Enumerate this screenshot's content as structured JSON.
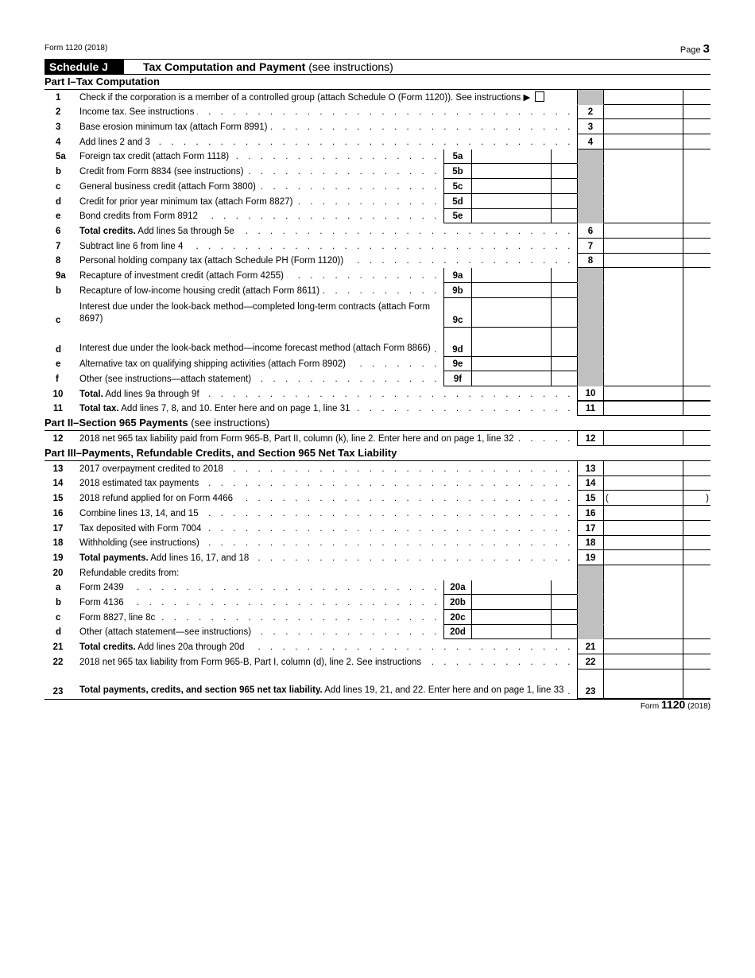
{
  "header": {
    "form_id": "Form 1120 (2018)",
    "page_label": "Page",
    "page_number": "3"
  },
  "schedule": {
    "badge": "Schedule J",
    "title": "Tax Computation and Payment",
    "note": "(see instructions)"
  },
  "rows": [
    {
      "type": "part",
      "title": "Part I–Tax Computation",
      "note": ""
    },
    {
      "type": "check",
      "num": "1",
      "desc": "Check if the corporation is a member of a controlled group (attach Schedule O (Form 1120)). See instructions",
      "arrow": "▶"
    },
    {
      "type": "main",
      "num": "2",
      "desc": "Income tax.  See instructions",
      "ln": "2"
    },
    {
      "type": "main",
      "num": "3",
      "desc": "Base erosion minimum tax (attach Form 8991)",
      "ln": "3"
    },
    {
      "type": "main",
      "num": "4",
      "desc": "Add lines 2 and 3",
      "ln": "4"
    },
    {
      "type": "sub",
      "num": "5a",
      "desc": "Foreign tax credit (attach Form 1118)",
      "sub": "5a"
    },
    {
      "type": "sub",
      "num": "b",
      "desc": "Credit from Form 8834 (see instructions)",
      "sub": "5b"
    },
    {
      "type": "sub",
      "num": "c",
      "desc": "General business credit (attach Form 3800)",
      "sub": "5c"
    },
    {
      "type": "sub",
      "num": "d",
      "desc": "Credit for prior year minimum tax (attach Form 8827)",
      "sub": "5d"
    },
    {
      "type": "sub",
      "num": "e",
      "desc": "Bond credits from Form 8912",
      "sub": "5e",
      "last": true
    },
    {
      "type": "main",
      "num": "6",
      "bold": "Total credits.",
      "desc": " Add lines 5a through 5e",
      "ln": "6"
    },
    {
      "type": "main",
      "num": "7",
      "desc": "Subtract line 6 from line 4",
      "ln": "7"
    },
    {
      "type": "main",
      "num": "8",
      "desc": "Personal holding company tax (attach Schedule PH (Form 1120))",
      "ln": "8"
    },
    {
      "type": "sub",
      "num": "9a",
      "desc": "Recapture of investment credit (attach Form 4255)",
      "sub": "9a"
    },
    {
      "type": "sub",
      "num": "b",
      "desc": "Recapture of low-income housing credit (attach Form 8611)",
      "sub": "9b"
    },
    {
      "type": "sub",
      "tall": true,
      "num": "c",
      "desc": "Interest due under the look-back method—completed long-term contracts (attach Form 8697)",
      "sub": "9c"
    },
    {
      "type": "sub",
      "tall": true,
      "num": "d",
      "desc": "Interest due under the look-back method—income forecast method (attach Form 8866)",
      "sub": "9d"
    },
    {
      "type": "sub",
      "num": "e",
      "desc": "Alternative tax on qualifying shipping activities (attach Form 8902)",
      "sub": "9e"
    },
    {
      "type": "sub",
      "num": "f",
      "desc": "Other (see instructions—attach statement)",
      "sub": "9f",
      "last": true
    },
    {
      "type": "main",
      "num": "10",
      "bold": "Total.",
      "desc": " Add lines 9a through 9f",
      "ln": "10",
      "thick": true
    },
    {
      "type": "main",
      "num": "11",
      "bold": "Total tax.",
      "desc": " Add lines 7, 8, and 10. Enter here and on page 1, line 31",
      "ln": "11"
    },
    {
      "type": "part",
      "title": "Part II–Section 965 Payments",
      "note": "(see instructions)"
    },
    {
      "type": "main",
      "num": "12",
      "desc": "2018 net 965 tax liability paid from Form 965-B, Part II, column (k), line 2. Enter here and on page 1, line 32",
      "ln": "12"
    },
    {
      "type": "part",
      "title": "Part III–Payments, Refundable Credits, and Section 965 Net Tax Liability",
      "note": ""
    },
    {
      "type": "main",
      "num": "13",
      "desc": "2017 overpayment credited to 2018",
      "ln": "13"
    },
    {
      "type": "main",
      "num": "14",
      "desc": "2018 estimated tax payments",
      "ln": "14"
    },
    {
      "type": "main",
      "num": "15",
      "desc": "2018 refund applied for on Form 4466",
      "ln": "15",
      "paren": true,
      "paren_l": "(",
      "paren_r": ")"
    },
    {
      "type": "main",
      "num": "16",
      "desc": "Combine lines 13, 14, and 15",
      "ln": "16"
    },
    {
      "type": "main",
      "num": "17",
      "desc": "Tax deposited with Form 7004",
      "ln": "17"
    },
    {
      "type": "main",
      "num": "18",
      "desc": "Withholding (see instructions)",
      "ln": "18"
    },
    {
      "type": "main",
      "num": "19",
      "bold": "Total payments.",
      "desc": " Add lines 16, 17, and 18",
      "ln": "19"
    },
    {
      "type": "head",
      "num": "20",
      "desc": "Refundable credits from:"
    },
    {
      "type": "sub",
      "num": "a",
      "desc": "Form 2439",
      "sub": "20a"
    },
    {
      "type": "sub",
      "num": "b",
      "desc": "Form 4136",
      "sub": "20b"
    },
    {
      "type": "sub",
      "num": "c",
      "desc": "Form 8827, line 8c",
      "sub": "20c"
    },
    {
      "type": "sub",
      "num": "d",
      "desc": "Other (attach statement—see instructions)",
      "sub": "20d",
      "last": true
    },
    {
      "type": "main",
      "num": "21",
      "bold": "Total credits.",
      "desc": " Add lines 20a through 20d",
      "ln": "21"
    },
    {
      "type": "main",
      "num": "22",
      "desc": "2018 net 965 tax liability from Form 965-B, Part I, column (d), line 2. See instructions",
      "ln": "22"
    },
    {
      "type": "main",
      "tall": true,
      "num": "23",
      "bold": "Total payments, credits, and section 965 net tax liability.",
      "desc": " Add lines 19, 21, and 22. Enter here and on page 1, line 33",
      "ln": "23"
    }
  ],
  "footer": {
    "prefix": "Form",
    "form": "1120",
    "year": "(2018)"
  }
}
